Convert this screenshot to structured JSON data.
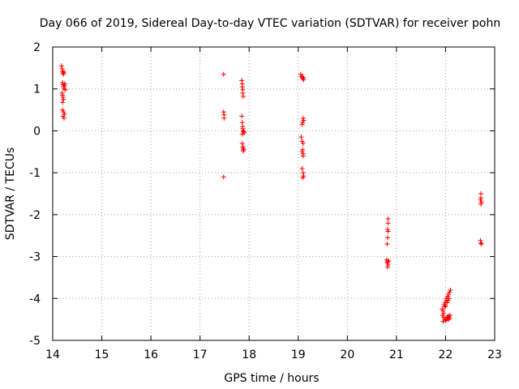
{
  "chart_data": {
    "type": "scatter",
    "title": "Day 066 of 2019, Sidereal Day-to-day VTEC variation (SDTVAR) for receiver pohn",
    "xlabel": "GPS time / hours",
    "ylabel": "SDTVAR / TECUs",
    "xlim": [
      14,
      23
    ],
    "ylim": [
      -5,
      2
    ],
    "xticks": [
      "14",
      "15",
      "16",
      "17",
      "18",
      "19",
      "20",
      "21",
      "22",
      "23"
    ],
    "yticks": [
      "-5",
      "-4",
      "-3",
      "-2",
      "-1",
      "0",
      "1",
      "2"
    ],
    "grid": true,
    "marker": "+",
    "color": "#ff0000",
    "points": [
      [
        14.18,
        1.55
      ],
      [
        14.19,
        1.48
      ],
      [
        14.2,
        1.42
      ],
      [
        14.21,
        1.38
      ],
      [
        14.22,
        1.35
      ],
      [
        14.23,
        1.4
      ],
      [
        14.2,
        1.15
      ],
      [
        14.21,
        1.1
      ],
      [
        14.22,
        1.05
      ],
      [
        14.23,
        1.0
      ],
      [
        14.24,
        1.08
      ],
      [
        14.25,
        1.12
      ],
      [
        14.26,
        0.98
      ],
      [
        14.19,
        0.9
      ],
      [
        14.2,
        0.85
      ],
      [
        14.21,
        0.8
      ],
      [
        14.22,
        0.75
      ],
      [
        14.2,
        0.68
      ],
      [
        14.2,
        0.5
      ],
      [
        14.22,
        0.45
      ],
      [
        14.24,
        0.4
      ],
      [
        14.21,
        0.35
      ],
      [
        14.23,
        0.3
      ],
      [
        17.48,
        1.35
      ],
      [
        17.48,
        0.45
      ],
      [
        17.49,
        0.38
      ],
      [
        17.49,
        0.3
      ],
      [
        17.48,
        -1.1
      ],
      [
        17.85,
        1.2
      ],
      [
        17.86,
        1.12
      ],
      [
        17.86,
        1.05
      ],
      [
        17.87,
        0.98
      ],
      [
        17.87,
        0.9
      ],
      [
        17.88,
        0.82
      ],
      [
        17.85,
        0.35
      ],
      [
        17.86,
        0.2
      ],
      [
        17.87,
        0.1
      ],
      [
        17.87,
        0.05
      ],
      [
        17.88,
        0.0
      ],
      [
        17.89,
        -0.02
      ],
      [
        17.9,
        -0.05
      ],
      [
        17.86,
        -0.08
      ],
      [
        17.86,
        -0.3
      ],
      [
        17.87,
        -0.38
      ],
      [
        17.88,
        -0.42
      ],
      [
        17.89,
        -0.45
      ],
      [
        17.88,
        -0.48
      ],
      [
        19.05,
        1.35
      ],
      [
        19.07,
        1.3
      ],
      [
        19.08,
        1.28
      ],
      [
        19.09,
        1.25
      ],
      [
        19.1,
        1.27
      ],
      [
        19.11,
        1.22
      ],
      [
        19.1,
        0.3
      ],
      [
        19.11,
        0.25
      ],
      [
        19.09,
        0.2
      ],
      [
        19.08,
        0.15
      ],
      [
        19.06,
        -0.15
      ],
      [
        19.08,
        -0.25
      ],
      [
        19.1,
        -0.3
      ],
      [
        19.09,
        -0.45
      ],
      [
        19.1,
        -0.55
      ],
      [
        19.08,
        -0.5
      ],
      [
        19.1,
        -0.6
      ],
      [
        19.08,
        -0.9
      ],
      [
        19.1,
        -1.0
      ],
      [
        19.11,
        -1.08
      ],
      [
        19.09,
        -1.12
      ],
      [
        20.83,
        -2.1
      ],
      [
        20.83,
        -2.2
      ],
      [
        20.82,
        -2.35
      ],
      [
        20.83,
        -2.4
      ],
      [
        20.82,
        -2.55
      ],
      [
        20.81,
        -2.7
      ],
      [
        20.8,
        -3.08
      ],
      [
        20.82,
        -3.12
      ],
      [
        20.84,
        -3.1
      ],
      [
        20.81,
        -3.15
      ],
      [
        20.83,
        -3.2
      ],
      [
        20.82,
        -3.25
      ],
      [
        21.93,
        -4.25
      ],
      [
        21.95,
        -4.3
      ],
      [
        21.96,
        -4.35
      ],
      [
        21.94,
        -4.4
      ],
      [
        21.96,
        -4.45
      ],
      [
        21.98,
        -4.5
      ],
      [
        22.0,
        -4.52
      ],
      [
        22.02,
        -4.5
      ],
      [
        22.04,
        -4.48
      ],
      [
        22.06,
        -4.5
      ],
      [
        22.08,
        -4.47
      ],
      [
        22.03,
        -4.45
      ],
      [
        22.05,
        -4.42
      ],
      [
        22.07,
        -4.44
      ],
      [
        21.97,
        -4.15
      ],
      [
        21.99,
        -4.1
      ],
      [
        22.01,
        -4.05
      ],
      [
        22.02,
        -4.0
      ],
      [
        22.04,
        -3.95
      ],
      [
        22.06,
        -3.9
      ],
      [
        22.08,
        -3.85
      ],
      [
        22.1,
        -3.8
      ],
      [
        21.98,
        -4.2
      ],
      [
        22.0,
        -4.18
      ],
      [
        22.03,
        -4.1
      ],
      [
        22.05,
        -4.05
      ],
      [
        22.07,
        -4.0
      ],
      [
        21.95,
        -4.55
      ],
      [
        22.09,
        -4.4
      ],
      [
        22.72,
        -1.5
      ],
      [
        22.72,
        -1.6
      ],
      [
        22.71,
        -1.65
      ],
      [
        22.73,
        -1.7
      ],
      [
        22.72,
        -1.75
      ],
      [
        22.71,
        -2.62
      ],
      [
        22.72,
        -2.68
      ],
      [
        22.73,
        -2.7
      ]
    ]
  }
}
